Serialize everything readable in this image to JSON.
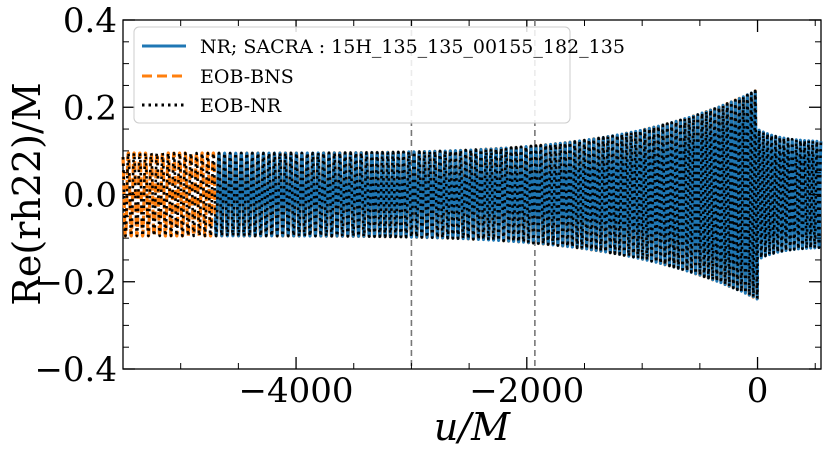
{
  "chart_data": {
    "type": "line",
    "xlabel": "u/M",
    "ylabel": "Re(rh22)/M",
    "xlim": [
      -5500,
      550
    ],
    "ylim": [
      -0.4,
      0.4
    ],
    "x_ticks": [
      -4000,
      -2000,
      0
    ],
    "y_ticks": [
      -0.4,
      -0.2,
      0.0,
      0.2,
      0.4
    ],
    "x_tick_labels": [
      "−4000",
      "−2000",
      "0"
    ],
    "y_tick_labels": [
      "−0.4",
      "−0.2",
      "0.0",
      "0.2",
      "0.4"
    ],
    "grid": false,
    "legend_position": "top-left",
    "vertical_lines": [
      -3000,
      -1930
    ],
    "series": [
      {
        "name": "NR; SACRA : 15H_135_135_00155_182_135",
        "color": "#1f77b4",
        "style": "solid",
        "x_range": [
          -4700,
          550
        ],
        "amplitude_start": 0.095,
        "amplitude_peak": 0.24,
        "peak_at": 0
      },
      {
        "name": "EOB-BNS",
        "color": "#ff7f0e",
        "style": "dashed",
        "x_range": [
          -5500,
          0
        ],
        "amplitude_start": 0.095,
        "amplitude_peak": 0.24,
        "peak_at": 0
      },
      {
        "name": "EOB-NR",
        "color": "#000000",
        "style": "dotted",
        "x_range": [
          -5500,
          550
        ],
        "amplitude_start": 0.095,
        "amplitude_peak": 0.24,
        "peak_at": 0
      }
    ]
  },
  "legend": {
    "entries": [
      "NR; SACRA : 15H_135_135_00155_182_135",
      "EOB-BNS",
      "EOB-NR"
    ]
  }
}
